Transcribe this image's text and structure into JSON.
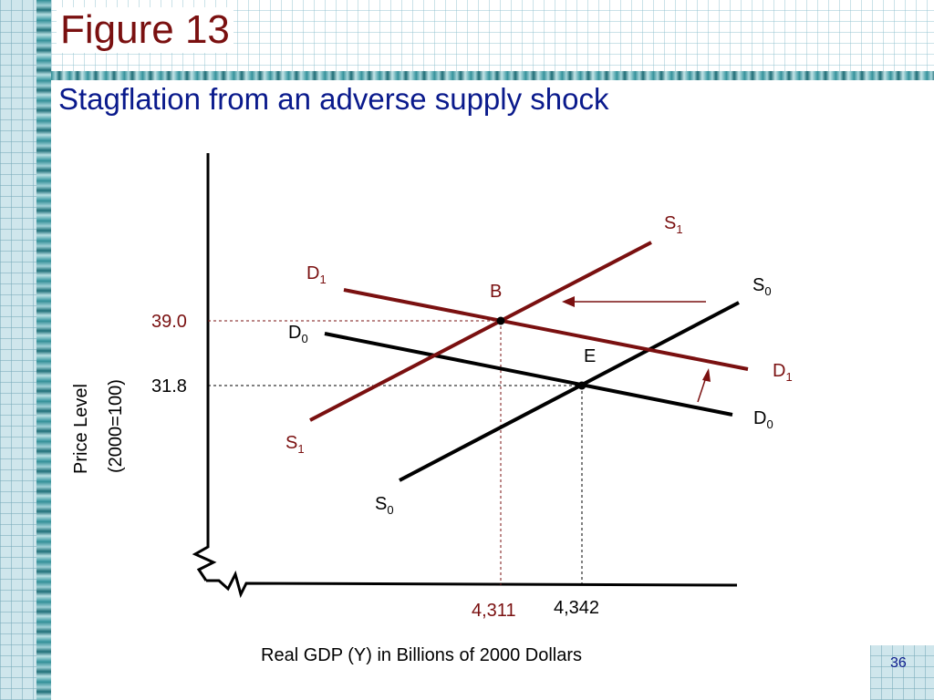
{
  "slide": {
    "title": "Figure 13",
    "subtitle": "Stagflation from an adverse supply shock",
    "page_number": "36"
  },
  "axes": {
    "y_label_line1": "Price Level",
    "y_label_line2": "(2000=100)",
    "x_label": "Real GDP (Y) in Billions of 2000 Dollars",
    "y_tick_high": "39.0",
    "y_tick_low": "31.8",
    "x_tick_b": "4,311",
    "x_tick_e": "4,342"
  },
  "curves": {
    "s1_top": {
      "main": "S",
      "sub": "1"
    },
    "s1_bottom": {
      "main": "S",
      "sub": "1"
    },
    "s0_top": {
      "main": "S",
      "sub": "0"
    },
    "s0_bottom": {
      "main": "S",
      "sub": "0"
    },
    "d1_left": {
      "main": "D",
      "sub": "1"
    },
    "d1_right": {
      "main": "D",
      "sub": "1"
    },
    "d0_left": {
      "main": "D",
      "sub": "0"
    },
    "d0_right": {
      "main": "D",
      "sub": "0"
    }
  },
  "points": {
    "b": "B",
    "e": "E"
  },
  "colors": {
    "title": "#7a1010",
    "subtitle": "#0a1a8c",
    "shifted_curves": "#7a1010",
    "original_curves": "#000000"
  }
}
